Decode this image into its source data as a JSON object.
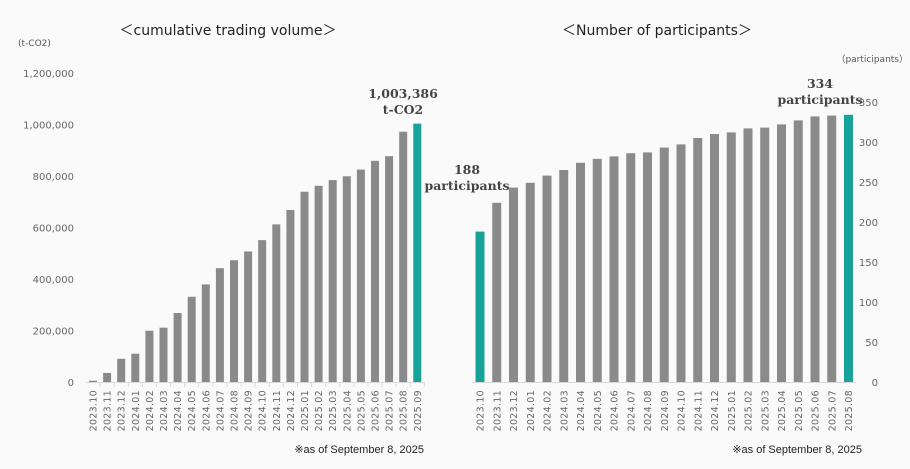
{
  "colors": {
    "bar": "#8a8a8a",
    "highlight": "#17a398",
    "axis": "#d8d8d8"
  },
  "chart_data": [
    {
      "type": "bar",
      "title": "＜cumulative trading volume＞",
      "ylabel": "(t-CO2)",
      "ylim": [
        0,
        1200000
      ],
      "yticks": [
        "0",
        "200,000",
        "400,000",
        "600,000",
        "800,000",
        "1,000,000",
        "1,200,000"
      ],
      "ytick_values": [
        0,
        200000,
        400000,
        600000,
        800000,
        1000000,
        1200000
      ],
      "y_axis_side": "left",
      "grid": false,
      "categories": [
        "2023.10",
        "2023.11",
        "2023.12",
        "2024.01",
        "2024.02",
        "2024.03",
        "2024.04",
        "2024.05",
        "2024.06",
        "2024.07",
        "2024.08",
        "2024.09",
        "2024.10",
        "2024.11",
        "2024.12",
        "2025.01",
        "2025.02",
        "2025.03",
        "2025.04",
        "2025.05",
        "2025.06",
        "2025.07",
        "2025.08",
        "2025.09"
      ],
      "values": [
        5000,
        35000,
        90000,
        110000,
        199000,
        211000,
        268000,
        331000,
        379000,
        442000,
        473000,
        507000,
        551000,
        612000,
        668000,
        739000,
        762000,
        784000,
        799000,
        825000,
        859000,
        877000,
        972000,
        1003386
      ],
      "highlight_index": [
        23
      ],
      "annotations": [
        {
          "index": 23,
          "lines": [
            "1,003,386",
            "t-CO2"
          ]
        }
      ],
      "footnote": "※as of September 8, 2025"
    },
    {
      "type": "bar",
      "title": "＜Number of participants＞",
      "ylabel": "（participants）",
      "ylim": [
        0,
        350
      ],
      "yticks": [
        "0",
        "50",
        "100",
        "150",
        "200",
        "250",
        "300",
        "350"
      ],
      "ytick_values": [
        0,
        50,
        100,
        150,
        200,
        250,
        300,
        350
      ],
      "y_axis_side": "right",
      "grid": false,
      "categories": [
        "2023.10",
        "2023.11",
        "2023.12",
        "2024.01",
        "2024.02",
        "2024.03",
        "2024.04",
        "2024.05",
        "2024.06",
        "2024.07",
        "2024.08",
        "2024.09",
        "2024.10",
        "2024.11",
        "2024.12",
        "2025.01",
        "2025.02",
        "2025.03",
        "2025.04",
        "2025.05",
        "2025.06",
        "2025.07",
        "2025.08"
      ],
      "values": [
        188,
        224,
        243,
        249,
        258,
        265,
        274,
        279,
        282,
        286,
        287,
        293,
        297,
        305,
        310,
        312,
        317,
        318,
        322,
        327,
        332,
        333,
        334
      ],
      "highlight_index": [
        0,
        22
      ],
      "annotations": [
        {
          "index": 0,
          "lines": [
            "188",
            "participants"
          ]
        },
        {
          "index": 22,
          "lines": [
            "334",
            "participants"
          ]
        }
      ],
      "footnote": "※as of September 8, 2025"
    }
  ]
}
